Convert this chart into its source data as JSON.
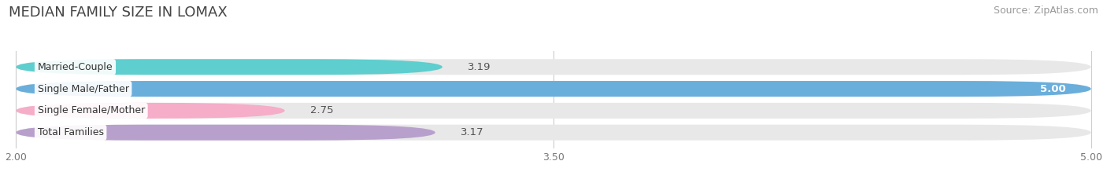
{
  "title": "MEDIAN FAMILY SIZE IN LOMAX",
  "source": "Source: ZipAtlas.com",
  "categories": [
    "Married-Couple",
    "Single Male/Father",
    "Single Female/Mother",
    "Total Families"
  ],
  "values": [
    3.19,
    5.0,
    2.75,
    3.17
  ],
  "bar_colors": [
    "#5ecece",
    "#6aaedb",
    "#f5adc8",
    "#b8a0cc"
  ],
  "x_min": 2.0,
  "x_max": 5.0,
  "x_ticks": [
    2.0,
    3.5,
    5.0
  ],
  "background_color": "#ffffff",
  "bar_bg_color": "#e8e8e8",
  "title_fontsize": 13,
  "source_fontsize": 9,
  "value_label_fontsize": 9.5,
  "category_fontsize": 9,
  "tick_fontsize": 9,
  "bar_height": 0.72,
  "rounding": 0.36
}
